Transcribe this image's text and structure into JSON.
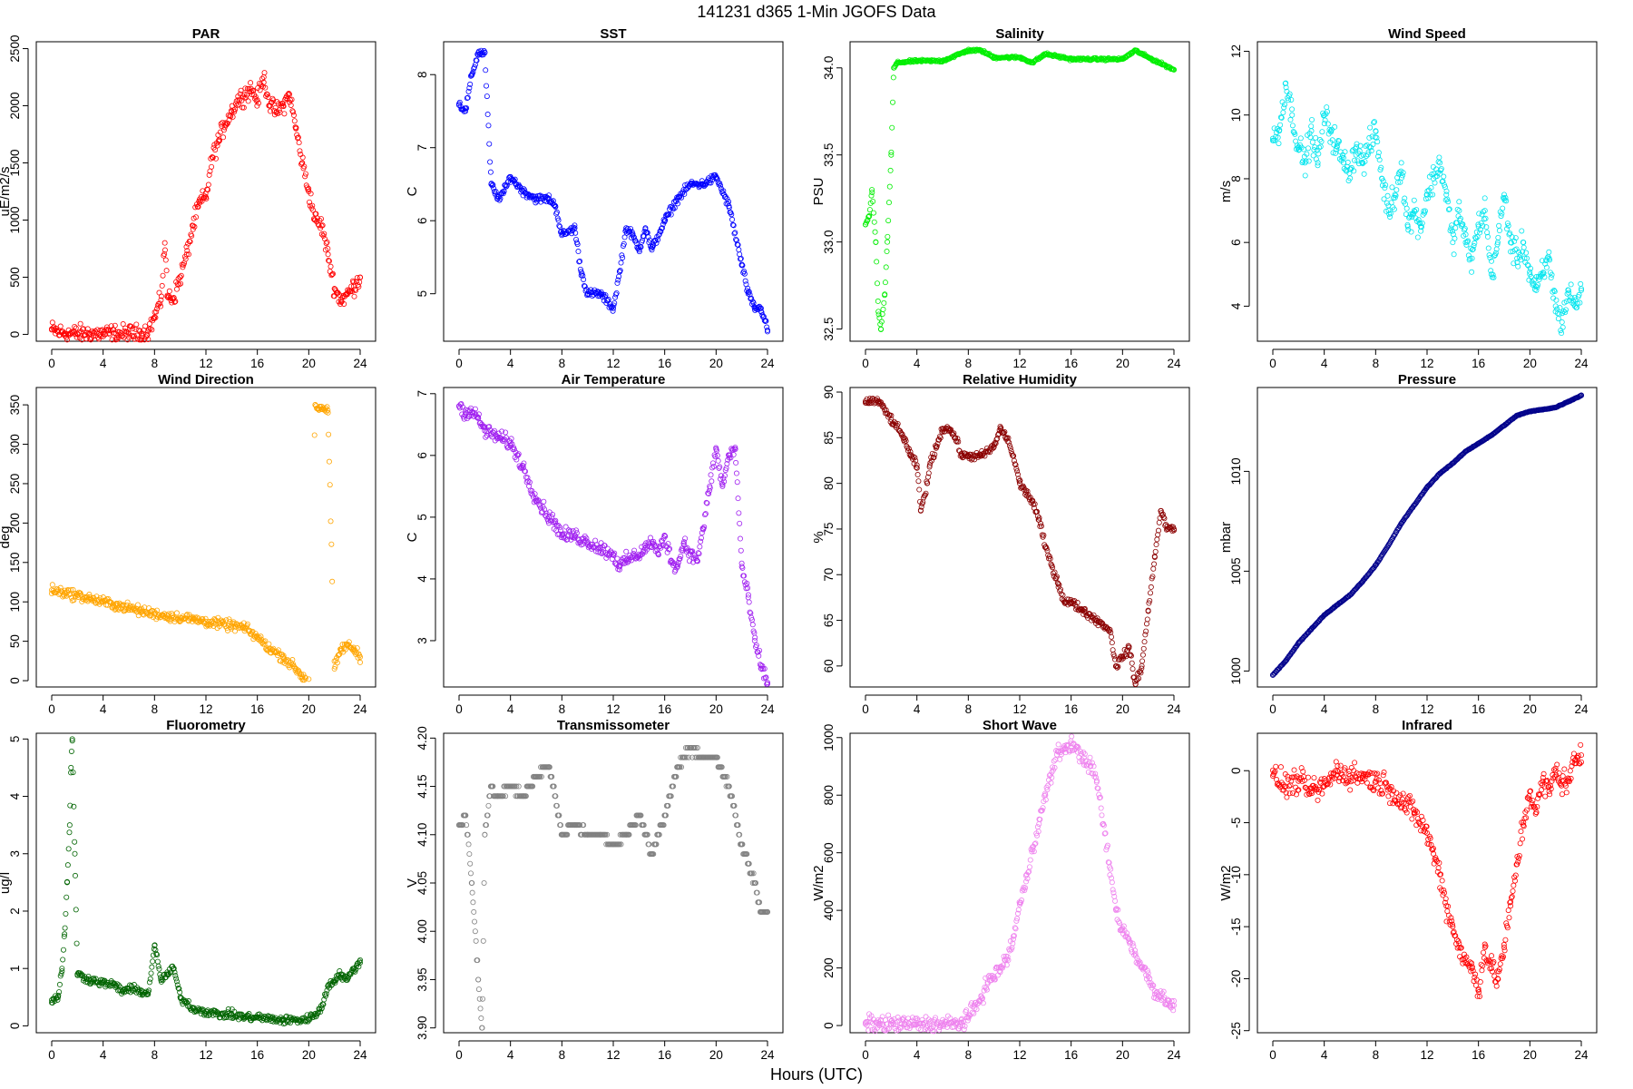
{
  "figure": {
    "title": "141231   d365   1-Min  JGOFS Data",
    "xlabel": "Hours (UTC)"
  },
  "chart_data": [
    {
      "type": "scatter",
      "title": "PAR",
      "ylabel": "uE/m2/s",
      "color": "#ff0000",
      "xticks": [
        0,
        4,
        8,
        12,
        16,
        20,
        24
      ],
      "yticks": [
        0,
        500,
        1000,
        1500,
        2000,
        2500
      ],
      "ylim": [
        -60,
        2560
      ],
      "x": [
        0,
        0.5,
        1,
        2,
        3,
        4,
        5,
        6,
        7,
        7.5,
        8,
        8.5,
        8.8,
        9,
        9.5,
        10,
        10.5,
        11,
        11.5,
        12,
        12.5,
        13,
        13.5,
        14,
        14.5,
        15,
        15.5,
        16,
        16.5,
        17,
        17.5,
        18,
        18.5,
        19,
        19.5,
        20,
        20.5,
        21,
        21.5,
        22,
        22.5,
        23,
        23.5,
        24
      ],
      "y": [
        40,
        20,
        10,
        5,
        5,
        5,
        5,
        5,
        5,
        30,
        150,
        300,
        800,
        340,
        320,
        500,
        700,
        950,
        1150,
        1200,
        1550,
        1700,
        1850,
        1950,
        2050,
        2100,
        2150,
        2050,
        2250,
        2000,
        1950,
        2000,
        2100,
        1800,
        1500,
        1250,
        1000,
        950,
        700,
        400,
        300,
        350,
        420,
        500
      ]
    },
    {
      "type": "scatter",
      "title": "SST",
      "ylabel": "C",
      "color": "#0000ff",
      "xticks": [
        0,
        4,
        8,
        12,
        16,
        20,
        24
      ],
      "yticks": [
        5,
        6,
        7,
        8
      ],
      "ylim": [
        4.35,
        8.45
      ],
      "x": [
        0,
        0.5,
        1,
        1.5,
        2,
        2.5,
        3,
        3.5,
        4,
        5,
        6,
        7,
        7.5,
        8,
        9,
        9.5,
        10,
        11,
        12,
        12.5,
        13,
        13.5,
        14,
        14.5,
        15,
        16,
        17,
        18,
        19,
        20,
        21,
        22,
        22.5,
        23,
        23.5,
        24
      ],
      "y": [
        7.6,
        7.5,
        8.0,
        8.3,
        8.3,
        6.5,
        6.3,
        6.4,
        6.6,
        6.4,
        6.3,
        6.3,
        6.2,
        5.8,
        5.9,
        5.3,
        5.0,
        5.0,
        4.8,
        5.3,
        5.9,
        5.8,
        5.6,
        5.9,
        5.6,
        6.0,
        6.3,
        6.5,
        6.5,
        6.6,
        6.2,
        5.4,
        5.0,
        4.8,
        4.8,
        4.5
      ]
    },
    {
      "type": "scatter",
      "title": "Salinity",
      "ylabel": "PSU",
      "color": "#00ee00",
      "xticks": [
        0,
        4,
        8,
        12,
        16,
        20,
        24
      ],
      "yticks": [
        32.5,
        33.0,
        33.5,
        34.0
      ],
      "ylim": [
        32.43,
        34.15
      ],
      "x": [
        0,
        0.3,
        0.5,
        0.8,
        1,
        1.2,
        1.5,
        1.7,
        2,
        2.2,
        2.5,
        4,
        6,
        8,
        9,
        10,
        12,
        13,
        14,
        16,
        18,
        20,
        21,
        22,
        24
      ],
      "y": [
        33.1,
        33.15,
        33.3,
        33.0,
        32.6,
        32.5,
        32.7,
        33.0,
        33.5,
        34.0,
        34.03,
        34.04,
        34.04,
        34.1,
        34.1,
        34.06,
        34.06,
        34.03,
        34.08,
        34.05,
        34.05,
        34.05,
        34.1,
        34.06,
        33.99
      ]
    },
    {
      "type": "scatter",
      "title": "Wind Speed",
      "ylabel": "m/s",
      "color": "#00e5ee",
      "xticks": [
        0,
        4,
        8,
        12,
        16,
        20,
        24
      ],
      "yticks": [
        4,
        6,
        8,
        10,
        12
      ],
      "ylim": [
        2.9,
        12.3
      ],
      "x": [
        0,
        0.5,
        1,
        1.5,
        2,
        2.5,
        3,
        3.5,
        4,
        4.5,
        5,
        5.5,
        6,
        6.5,
        7,
        7.5,
        8,
        8.5,
        9,
        9.5,
        10,
        10.5,
        11,
        11.5,
        12,
        12.5,
        13,
        13.5,
        14,
        14.5,
        15,
        15.5,
        16,
        16.5,
        17,
        17.5,
        18,
        18.5,
        19,
        19.5,
        20,
        20.5,
        21,
        21.5,
        22,
        22.5,
        23,
        23.5,
        24
      ],
      "y": [
        9.2,
        9.5,
        11,
        10,
        9,
        8.5,
        9.5,
        8.5,
        10,
        9.5,
        9,
        8.5,
        8.3,
        9,
        8.5,
        9,
        9.5,
        8,
        7,
        7.5,
        8.5,
        6.5,
        7,
        6.5,
        7.5,
        8,
        8.5,
        7.5,
        6,
        7,
        6,
        5.5,
        6.5,
        7,
        5,
        6,
        7.5,
        6,
        5.5,
        6,
        5,
        4.5,
        5,
        5.5,
        4,
        3.5,
        4.5,
        4,
        4.5
      ]
    },
    {
      "type": "scatter",
      "title": "Wind Direction",
      "ylabel": "deg",
      "color": "#ffa500",
      "xticks": [
        0,
        4,
        8,
        12,
        16,
        20,
        24
      ],
      "yticks": [
        0,
        50,
        100,
        150,
        200,
        250,
        300,
        350
      ],
      "ylim": [
        -8,
        372
      ],
      "x": [
        0,
        1,
        2,
        3,
        4,
        5,
        6,
        7,
        8,
        9,
        10,
        11,
        12,
        13,
        14,
        15,
        16,
        17,
        18,
        19,
        19.5,
        20,
        20.5,
        20.8,
        21,
        21.5,
        22,
        22.5,
        23,
        23.5,
        24
      ],
      "y": [
        115,
        112,
        108,
        104,
        100,
        96,
        92,
        88,
        85,
        82,
        80,
        78,
        75,
        72,
        70,
        67,
        55,
        40,
        30,
        15,
        5,
        2,
        350,
        345,
        348,
        340,
        15,
        40,
        45,
        40,
        30
      ]
    },
    {
      "type": "scatter",
      "title": "Air Temperature",
      "ylabel": "C",
      "color": "#a020f0",
      "xticks": [
        0,
        4,
        8,
        12,
        16,
        20,
        24
      ],
      "yticks": [
        3,
        4,
        5,
        6,
        7
      ],
      "ylim": [
        2.25,
        7.1
      ],
      "x": [
        0,
        0.5,
        1,
        1.5,
        2,
        3,
        4,
        5,
        6,
        7,
        7.5,
        8,
        9,
        10,
        11,
        12,
        12.5,
        13,
        14,
        14.5,
        15,
        15.5,
        16,
        16.5,
        17,
        17.5,
        18,
        18.5,
        19,
        19.5,
        20,
        20.5,
        21,
        21.5,
        22,
        22.5,
        23,
        23.5,
        24
      ],
      "y": [
        6.8,
        6.7,
        6.7,
        6.6,
        6.4,
        6.3,
        6.2,
        5.8,
        5.3,
        5.0,
        4.9,
        4.7,
        4.7,
        4.6,
        4.5,
        4.4,
        4.2,
        4.3,
        4.4,
        4.5,
        4.6,
        4.4,
        4.7,
        4.3,
        4.2,
        4.6,
        4.4,
        4.3,
        4.8,
        5.5,
        6.1,
        5.5,
        6.0,
        6.1,
        4.2,
        3.7,
        3.0,
        2.6,
        2.3
      ]
    },
    {
      "type": "scatter",
      "title": "Relative Humidity",
      "ylabel": "%",
      "color": "#8b0000",
      "xticks": [
        0,
        4,
        8,
        12,
        16,
        20,
        24
      ],
      "yticks": [
        60,
        65,
        70,
        75,
        80,
        85,
        90
      ],
      "ylim": [
        57.7,
        90.5
      ],
      "x": [
        0,
        1,
        2,
        3,
        3.5,
        4,
        4.3,
        4.8,
        5,
        5.5,
        6,
        6.5,
        7,
        7.5,
        8,
        9,
        10,
        10.5,
        11,
        11.5,
        12,
        12.5,
        13,
        13.5,
        14,
        14.5,
        15,
        15.5,
        16,
        17,
        18,
        19,
        19.5,
        20,
        20.5,
        21,
        21.5,
        22,
        22.5,
        23,
        23.5,
        24
      ],
      "y": [
        89,
        89,
        87,
        85,
        83,
        82,
        77,
        80,
        82,
        84,
        86,
        86,
        85,
        83,
        83,
        83,
        84,
        86,
        85,
        83,
        80,
        79,
        78,
        76,
        73,
        71,
        69,
        67,
        67,
        66,
        65,
        64,
        60,
        61,
        62,
        58,
        60,
        66,
        72,
        77,
        75,
        75
      ]
    },
    {
      "type": "scatter",
      "title": "Pressure",
      "ylabel": "mbar",
      "color": "#00008b",
      "xticks": [
        0,
        4,
        8,
        12,
        16,
        20,
        24
      ],
      "yticks": [
        1000,
        1005,
        1010
      ],
      "ylim": [
        999.2,
        1014.2
      ],
      "x": [
        0,
        1,
        2,
        3,
        4,
        5,
        6,
        7,
        8,
        9,
        10,
        11,
        12,
        13,
        14,
        15,
        16,
        17,
        18,
        19,
        20,
        21,
        22,
        23,
        24
      ],
      "y": [
        999.8,
        1000.5,
        1001.4,
        1002.1,
        1002.8,
        1003.3,
        1003.8,
        1004.5,
        1005.3,
        1006.3,
        1007.4,
        1008.3,
        1009.2,
        1009.9,
        1010.4,
        1011.0,
        1011.4,
        1011.8,
        1012.3,
        1012.8,
        1013.0,
        1013.1,
        1013.2,
        1013.5,
        1013.8
      ]
    },
    {
      "type": "scatter",
      "title": "Fluorometry",
      "ylabel": "ug/l",
      "color": "#006400",
      "xticks": [
        0,
        4,
        8,
        12,
        16,
        20,
        24
      ],
      "yticks": [
        0,
        1,
        2,
        3,
        4,
        5
      ],
      "ylim": [
        -0.12,
        5.1
      ],
      "x": [
        0,
        0.5,
        0.8,
        1,
        1.2,
        1.4,
        1.5,
        1.6,
        1.8,
        2,
        3,
        4,
        5,
        5.5,
        6,
        7,
        7.5,
        8,
        8.5,
        9,
        9.5,
        10,
        11,
        12,
        13,
        14,
        15,
        16,
        17,
        18,
        19,
        20,
        21,
        21.5,
        22,
        22.5,
        23,
        23.5,
        24
      ],
      "y": [
        0.45,
        0.5,
        1.0,
        1.6,
        2.5,
        3.5,
        4.5,
        5.0,
        3.0,
        0.9,
        0.8,
        0.75,
        0.7,
        0.6,
        0.65,
        0.6,
        0.55,
        1.4,
        0.8,
        0.9,
        1.0,
        0.5,
        0.3,
        0.25,
        0.2,
        0.2,
        0.15,
        0.15,
        0.12,
        0.1,
        0.1,
        0.12,
        0.3,
        0.7,
        0.8,
        0.9,
        0.8,
        1.0,
        1.1
      ]
    },
    {
      "type": "scatter",
      "title": "Transmissometer",
      "ylabel": "V",
      "color": "#808080",
      "xticks": [
        0,
        4,
        8,
        12,
        16,
        20,
        24
      ],
      "yticks": [
        3.9,
        3.95,
        4.0,
        4.05,
        4.1,
        4.15,
        4.2
      ],
      "ylim": [
        3.895,
        4.205
      ],
      "x": [
        0,
        0.5,
        1,
        1.5,
        1.8,
        2,
        2.5,
        3,
        4,
        5,
        6,
        7,
        7.5,
        8,
        9,
        10,
        11,
        12,
        13,
        14,
        15,
        16,
        17,
        18,
        19,
        20,
        21,
        22,
        22.5,
        23,
        23.5,
        24
      ],
      "y": [
        4.11,
        4.12,
        4.05,
        3.95,
        3.9,
        4.1,
        4.15,
        4.14,
        4.15,
        4.14,
        4.16,
        4.17,
        4.14,
        4.1,
        4.11,
        4.1,
        4.1,
        4.09,
        4.1,
        4.12,
        4.08,
        4.12,
        4.17,
        4.19,
        4.18,
        4.18,
        4.15,
        4.09,
        4.07,
        4.05,
        4.02,
        4.02
      ]
    },
    {
      "type": "scatter",
      "title": "Short Wave",
      "ylabel": "W/m2",
      "color": "#ee82ee",
      "xticks": [
        0,
        4,
        8,
        12,
        16,
        20,
        24
      ],
      "yticks": [
        0,
        200,
        400,
        600,
        800,
        1000
      ],
      "ylim": [
        -25,
        1015
      ],
      "x": [
        0,
        1,
        2,
        3,
        4,
        5,
        6,
        7,
        7.5,
        8,
        8.5,
        9,
        9.5,
        10,
        10.5,
        11,
        11.5,
        12,
        12.5,
        13,
        13.5,
        14,
        14.5,
        15,
        15.5,
        16,
        16.5,
        17,
        17.5,
        18,
        18.5,
        19,
        19.5,
        20,
        20.5,
        21,
        21.5,
        22,
        22.5,
        23,
        23.5,
        24
      ],
      "y": [
        10,
        5,
        5,
        5,
        5,
        5,
        5,
        5,
        10,
        30,
        60,
        100,
        150,
        170,
        200,
        230,
        300,
        420,
        500,
        620,
        700,
        800,
        880,
        950,
        960,
        980,
        950,
        930,
        900,
        850,
        700,
        550,
        400,
        330,
        300,
        250,
        200,
        170,
        120,
        100,
        90,
        70
      ]
    },
    {
      "type": "scatter",
      "title": "Infrared",
      "ylabel": "W/m2",
      "color": "#ff0000",
      "xticks": [
        0,
        4,
        8,
        12,
        16,
        20,
        24
      ],
      "yticks": [
        -25,
        -20,
        -15,
        -10,
        -5,
        0
      ],
      "ylim": [
        -25.2,
        3.6
      ],
      "x": [
        0,
        1,
        2,
        3,
        4,
        5,
        6,
        7,
        8,
        9,
        10,
        11,
        12,
        12.5,
        13,
        13.5,
        14,
        14.5,
        15,
        15.5,
        16,
        16.5,
        17,
        17.5,
        18,
        18.5,
        19,
        19.5,
        20,
        20.5,
        21,
        21.5,
        22,
        22.5,
        23,
        23.5,
        24
      ],
      "y": [
        -0.5,
        -1.5,
        -1.0,
        -2.0,
        -1.5,
        0.0,
        -0.5,
        -0.5,
        -1.0,
        -1.5,
        -3.0,
        -4.0,
        -6.0,
        -8.0,
        -10.0,
        -13.0,
        -15.0,
        -17.0,
        -18.5,
        -19.0,
        -21.0,
        -17.0,
        -19.0,
        -20.0,
        -17.0,
        -13.0,
        -9.0,
        -5.0,
        -2.0,
        -4.0,
        -1.0,
        -2.0,
        0.0,
        -1.0,
        -1.0,
        1.0,
        1.5
      ]
    }
  ]
}
